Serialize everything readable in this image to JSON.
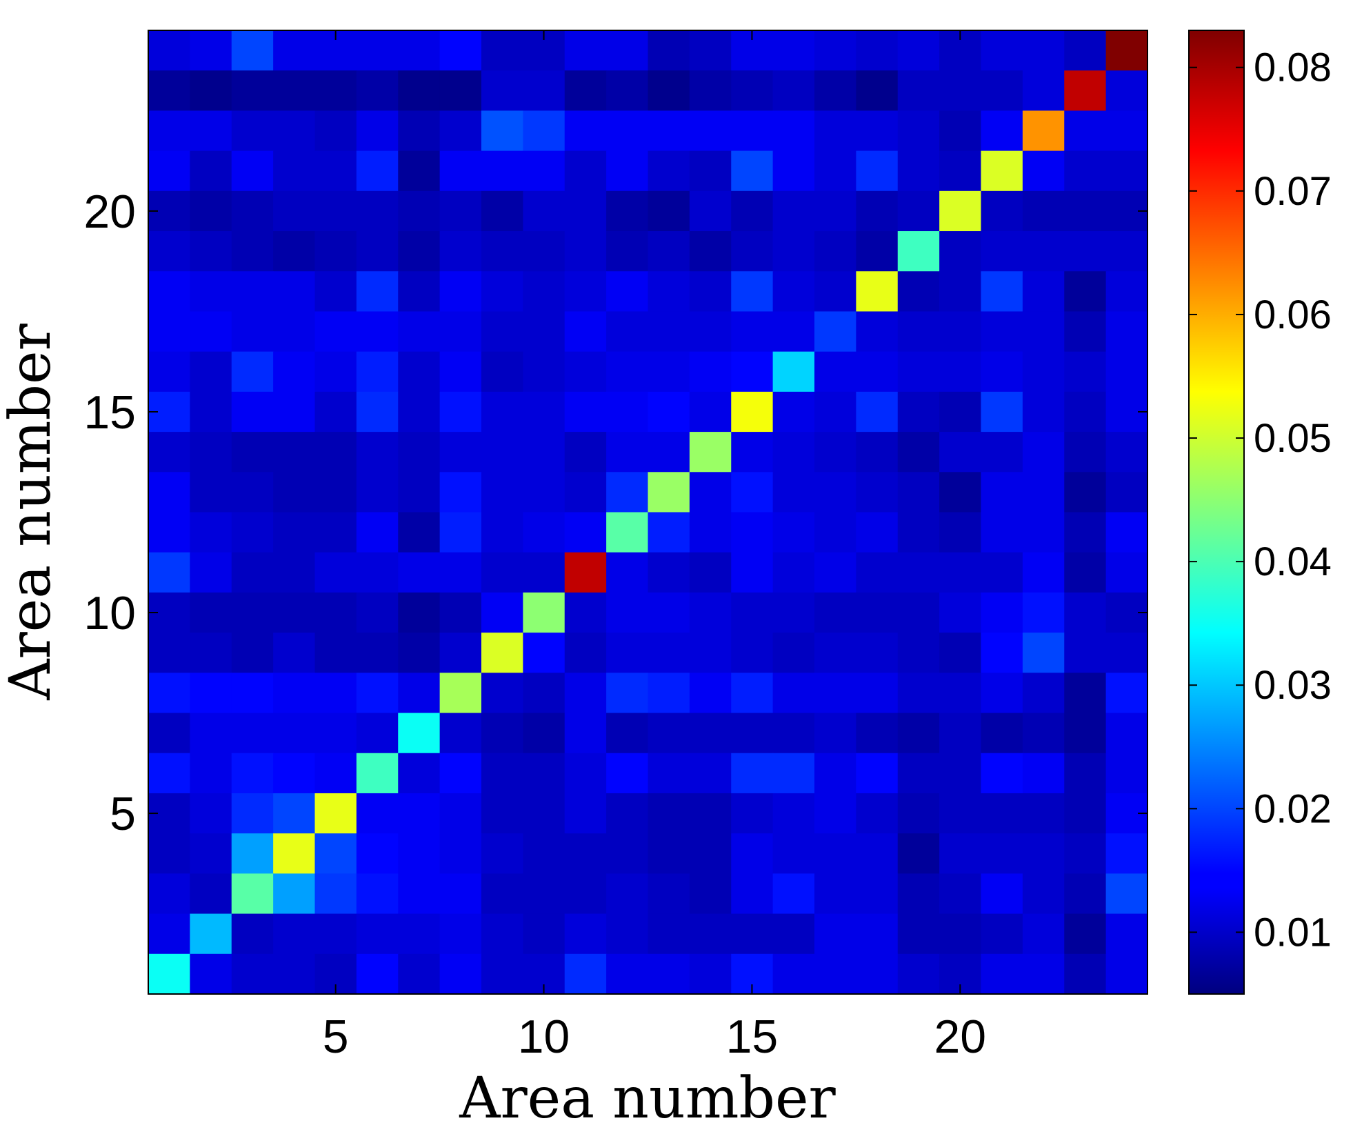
{
  "chart_data": {
    "type": "heatmap",
    "title": "",
    "xlabel": "Area number",
    "ylabel": "Area number",
    "n": 24,
    "x_ticks": [
      5,
      10,
      15,
      20
    ],
    "y_ticks": [
      5,
      10,
      15,
      20
    ],
    "colorbar": {
      "colormap": "jet",
      "min": 0.005,
      "max": 0.083,
      "ticks": [
        0.01,
        0.02,
        0.03,
        0.04,
        0.05,
        0.06,
        0.07,
        0.08
      ],
      "tick_labels": [
        "0.01",
        "0.02",
        "0.03",
        "0.04",
        "0.05",
        "0.06",
        "0.07",
        "0.08"
      ]
    },
    "rows_top_to_bottom": [
      [
        0.012,
        0.013,
        0.02,
        0.013,
        0.013,
        0.013,
        0.013,
        0.015,
        0.01,
        0.01,
        0.013,
        0.013,
        0.009,
        0.01,
        0.013,
        0.013,
        0.012,
        0.011,
        0.012,
        0.01,
        0.012,
        0.012,
        0.01,
        0.083
      ],
      [
        0.007,
        0.006,
        0.007,
        0.007,
        0.007,
        0.008,
        0.006,
        0.006,
        0.011,
        0.011,
        0.007,
        0.008,
        0.006,
        0.008,
        0.009,
        0.01,
        0.008,
        0.006,
        0.01,
        0.01,
        0.01,
        0.012,
        0.078,
        0.012
      ],
      [
        0.013,
        0.013,
        0.011,
        0.011,
        0.01,
        0.013,
        0.009,
        0.011,
        0.021,
        0.019,
        0.014,
        0.014,
        0.014,
        0.014,
        0.014,
        0.014,
        0.012,
        0.012,
        0.011,
        0.009,
        0.014,
        0.062,
        0.013,
        0.013
      ],
      [
        0.014,
        0.01,
        0.014,
        0.011,
        0.011,
        0.017,
        0.007,
        0.014,
        0.014,
        0.014,
        0.011,
        0.014,
        0.011,
        0.01,
        0.02,
        0.014,
        0.012,
        0.018,
        0.011,
        0.01,
        0.051,
        0.014,
        0.011,
        0.011
      ],
      [
        0.009,
        0.008,
        0.009,
        0.01,
        0.01,
        0.01,
        0.009,
        0.01,
        0.008,
        0.011,
        0.011,
        0.008,
        0.007,
        0.011,
        0.009,
        0.011,
        0.011,
        0.009,
        0.01,
        0.051,
        0.01,
        0.009,
        0.009,
        0.009
      ],
      [
        0.011,
        0.01,
        0.009,
        0.008,
        0.009,
        0.01,
        0.008,
        0.011,
        0.01,
        0.01,
        0.011,
        0.009,
        0.01,
        0.008,
        0.01,
        0.011,
        0.01,
        0.008,
        0.039,
        0.01,
        0.011,
        0.011,
        0.011,
        0.011
      ],
      [
        0.014,
        0.013,
        0.013,
        0.013,
        0.011,
        0.018,
        0.01,
        0.014,
        0.012,
        0.011,
        0.012,
        0.014,
        0.012,
        0.011,
        0.019,
        0.012,
        0.011,
        0.052,
        0.009,
        0.01,
        0.019,
        0.012,
        0.007,
        0.012
      ],
      [
        0.014,
        0.014,
        0.013,
        0.013,
        0.014,
        0.014,
        0.013,
        0.013,
        0.011,
        0.011,
        0.014,
        0.012,
        0.012,
        0.012,
        0.013,
        0.013,
        0.019,
        0.012,
        0.011,
        0.011,
        0.012,
        0.012,
        0.009,
        0.013
      ],
      [
        0.013,
        0.011,
        0.018,
        0.014,
        0.013,
        0.017,
        0.011,
        0.014,
        0.01,
        0.011,
        0.012,
        0.013,
        0.013,
        0.014,
        0.015,
        0.031,
        0.013,
        0.013,
        0.012,
        0.012,
        0.013,
        0.012,
        0.011,
        0.013
      ],
      [
        0.017,
        0.011,
        0.014,
        0.014,
        0.011,
        0.018,
        0.011,
        0.016,
        0.012,
        0.012,
        0.014,
        0.014,
        0.015,
        0.013,
        0.053,
        0.013,
        0.012,
        0.018,
        0.01,
        0.009,
        0.019,
        0.012,
        0.01,
        0.013
      ],
      [
        0.011,
        0.01,
        0.009,
        0.009,
        0.009,
        0.011,
        0.01,
        0.012,
        0.012,
        0.012,
        0.01,
        0.013,
        0.013,
        0.046,
        0.013,
        0.012,
        0.011,
        0.01,
        0.008,
        0.011,
        0.011,
        0.013,
        0.009,
        0.011
      ],
      [
        0.014,
        0.01,
        0.01,
        0.009,
        0.009,
        0.011,
        0.01,
        0.016,
        0.012,
        0.012,
        0.011,
        0.018,
        0.046,
        0.013,
        0.016,
        0.012,
        0.012,
        0.011,
        0.01,
        0.007,
        0.013,
        0.013,
        0.007,
        0.01
      ],
      [
        0.014,
        0.012,
        0.011,
        0.01,
        0.01,
        0.014,
        0.008,
        0.017,
        0.012,
        0.013,
        0.014,
        0.041,
        0.017,
        0.013,
        0.014,
        0.013,
        0.012,
        0.013,
        0.01,
        0.009,
        0.013,
        0.013,
        0.009,
        0.014
      ],
      [
        0.019,
        0.013,
        0.01,
        0.01,
        0.012,
        0.012,
        0.013,
        0.013,
        0.011,
        0.011,
        0.078,
        0.013,
        0.011,
        0.01,
        0.014,
        0.012,
        0.013,
        0.011,
        0.011,
        0.011,
        0.011,
        0.014,
        0.008,
        0.013
      ],
      [
        0.01,
        0.009,
        0.009,
        0.009,
        0.009,
        0.01,
        0.007,
        0.009,
        0.014,
        0.045,
        0.011,
        0.013,
        0.013,
        0.012,
        0.011,
        0.011,
        0.01,
        0.01,
        0.01,
        0.012,
        0.014,
        0.016,
        0.011,
        0.01
      ],
      [
        0.01,
        0.01,
        0.009,
        0.011,
        0.009,
        0.009,
        0.008,
        0.011,
        0.051,
        0.015,
        0.01,
        0.012,
        0.012,
        0.012,
        0.011,
        0.01,
        0.011,
        0.011,
        0.01,
        0.009,
        0.015,
        0.02,
        0.011,
        0.011
      ],
      [
        0.016,
        0.015,
        0.015,
        0.014,
        0.014,
        0.016,
        0.013,
        0.047,
        0.011,
        0.01,
        0.013,
        0.018,
        0.017,
        0.014,
        0.017,
        0.013,
        0.013,
        0.013,
        0.011,
        0.011,
        0.013,
        0.011,
        0.007,
        0.016
      ],
      [
        0.01,
        0.013,
        0.013,
        0.013,
        0.013,
        0.012,
        0.035,
        0.011,
        0.009,
        0.008,
        0.013,
        0.009,
        0.01,
        0.01,
        0.01,
        0.01,
        0.011,
        0.009,
        0.008,
        0.01,
        0.008,
        0.009,
        0.007,
        0.013
      ],
      [
        0.016,
        0.013,
        0.016,
        0.015,
        0.014,
        0.039,
        0.012,
        0.015,
        0.01,
        0.01,
        0.012,
        0.015,
        0.012,
        0.012,
        0.018,
        0.018,
        0.013,
        0.015,
        0.01,
        0.01,
        0.015,
        0.014,
        0.009,
        0.013
      ],
      [
        0.01,
        0.012,
        0.018,
        0.02,
        0.052,
        0.014,
        0.014,
        0.013,
        0.01,
        0.01,
        0.012,
        0.01,
        0.009,
        0.009,
        0.011,
        0.012,
        0.013,
        0.011,
        0.009,
        0.01,
        0.01,
        0.01,
        0.009,
        0.014
      ],
      [
        0.01,
        0.011,
        0.027,
        0.052,
        0.02,
        0.015,
        0.014,
        0.013,
        0.011,
        0.01,
        0.01,
        0.01,
        0.009,
        0.009,
        0.013,
        0.012,
        0.012,
        0.012,
        0.007,
        0.011,
        0.011,
        0.011,
        0.01,
        0.016
      ],
      [
        0.012,
        0.01,
        0.041,
        0.027,
        0.019,
        0.016,
        0.014,
        0.014,
        0.01,
        0.01,
        0.01,
        0.011,
        0.01,
        0.009,
        0.013,
        0.016,
        0.012,
        0.012,
        0.009,
        0.01,
        0.014,
        0.011,
        0.009,
        0.02
      ],
      [
        0.013,
        0.029,
        0.01,
        0.011,
        0.011,
        0.012,
        0.012,
        0.013,
        0.011,
        0.01,
        0.012,
        0.011,
        0.01,
        0.01,
        0.01,
        0.01,
        0.013,
        0.013,
        0.009,
        0.009,
        0.01,
        0.012,
        0.007,
        0.013
      ],
      [
        0.035,
        0.013,
        0.011,
        0.011,
        0.01,
        0.015,
        0.011,
        0.014,
        0.011,
        0.011,
        0.018,
        0.013,
        0.013,
        0.012,
        0.016,
        0.013,
        0.013,
        0.013,
        0.011,
        0.01,
        0.013,
        0.013,
        0.009,
        0.013
      ]
    ]
  }
}
